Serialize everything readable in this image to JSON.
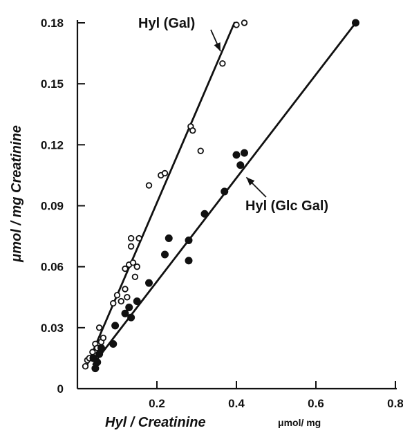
{
  "chart_data": {
    "type": "scatter",
    "xlabel": "Hyl / Creatinine",
    "xunit": "μmol/ mg",
    "ylabel": "μmol / mg  Creatinine",
    "xlim": [
      0.0,
      0.8
    ],
    "ylim": [
      0.0,
      0.18
    ],
    "xticks": [
      0.2,
      0.4,
      0.6,
      0.8
    ],
    "xtick_labels": [
      "0.2",
      "0.4",
      "0.6",
      "0.8"
    ],
    "yticks": [
      0.0,
      0.03,
      0.06,
      0.09,
      0.12,
      0.15,
      0.18
    ],
    "ytick_labels": [
      "0",
      "0.03",
      "0.06",
      "0.09",
      "0.12",
      "0.15",
      "0.18"
    ],
    "series": [
      {
        "name": "Hyl (Gal)",
        "marker": "open-circle",
        "points": [
          {
            "x": 0.02,
            "y": 0.011
          },
          {
            "x": 0.025,
            "y": 0.014
          },
          {
            "x": 0.03,
            "y": 0.015
          },
          {
            "x": 0.038,
            "y": 0.018
          },
          {
            "x": 0.045,
            "y": 0.022
          },
          {
            "x": 0.05,
            "y": 0.02
          },
          {
            "x": 0.055,
            "y": 0.03
          },
          {
            "x": 0.06,
            "y": 0.023
          },
          {
            "x": 0.065,
            "y": 0.025
          },
          {
            "x": 0.09,
            "y": 0.042
          },
          {
            "x": 0.1,
            "y": 0.046
          },
          {
            "x": 0.11,
            "y": 0.043
          },
          {
            "x": 0.12,
            "y": 0.049
          },
          {
            "x": 0.125,
            "y": 0.045
          },
          {
            "x": 0.12,
            "y": 0.059
          },
          {
            "x": 0.13,
            "y": 0.061
          },
          {
            "x": 0.135,
            "y": 0.07
          },
          {
            "x": 0.135,
            "y": 0.074
          },
          {
            "x": 0.14,
            "y": 0.062
          },
          {
            "x": 0.145,
            "y": 0.055
          },
          {
            "x": 0.15,
            "y": 0.06
          },
          {
            "x": 0.155,
            "y": 0.074
          },
          {
            "x": 0.18,
            "y": 0.1
          },
          {
            "x": 0.21,
            "y": 0.105
          },
          {
            "x": 0.22,
            "y": 0.106
          },
          {
            "x": 0.285,
            "y": 0.129
          },
          {
            "x": 0.29,
            "y": 0.127
          },
          {
            "x": 0.31,
            "y": 0.117
          },
          {
            "x": 0.365,
            "y": 0.16
          },
          {
            "x": 0.4,
            "y": 0.179
          },
          {
            "x": 0.42,
            "y": 0.18
          }
        ],
        "fit_line": {
          "x": [
            0.025,
            0.395
          ],
          "y": [
            0.012,
            0.18
          ]
        }
      },
      {
        "name": "Hyl (Glc Gal)",
        "marker": "filled-circle",
        "points": [
          {
            "x": 0.04,
            "y": 0.015
          },
          {
            "x": 0.045,
            "y": 0.01
          },
          {
            "x": 0.05,
            "y": 0.013
          },
          {
            "x": 0.055,
            "y": 0.017
          },
          {
            "x": 0.06,
            "y": 0.02
          },
          {
            "x": 0.09,
            "y": 0.022
          },
          {
            "x": 0.095,
            "y": 0.031
          },
          {
            "x": 0.12,
            "y": 0.037
          },
          {
            "x": 0.13,
            "y": 0.04
          },
          {
            "x": 0.135,
            "y": 0.035
          },
          {
            "x": 0.15,
            "y": 0.043
          },
          {
            "x": 0.18,
            "y": 0.052
          },
          {
            "x": 0.22,
            "y": 0.066
          },
          {
            "x": 0.23,
            "y": 0.074
          },
          {
            "x": 0.28,
            "y": 0.063
          },
          {
            "x": 0.28,
            "y": 0.073
          },
          {
            "x": 0.32,
            "y": 0.086
          },
          {
            "x": 0.37,
            "y": 0.097
          },
          {
            "x": 0.4,
            "y": 0.115
          },
          {
            "x": 0.41,
            "y": 0.11
          },
          {
            "x": 0.42,
            "y": 0.116
          },
          {
            "x": 0.7,
            "y": 0.18
          }
        ],
        "fit_line": {
          "x": [
            0.04,
            0.7
          ],
          "y": [
            0.012,
            0.18
          ]
        }
      }
    ],
    "annotations": [
      {
        "text": "Hyl (Gal)",
        "series": "Hyl (Gal)",
        "arrow_target": {
          "x": 0.36,
          "y": 0.166
        }
      },
      {
        "text": "Hyl (Glc Gal)",
        "series": "Hyl (Glc Gal)",
        "arrow_target": {
          "x": 0.425,
          "y": 0.104
        }
      }
    ],
    "grid": false,
    "legend": "none"
  }
}
